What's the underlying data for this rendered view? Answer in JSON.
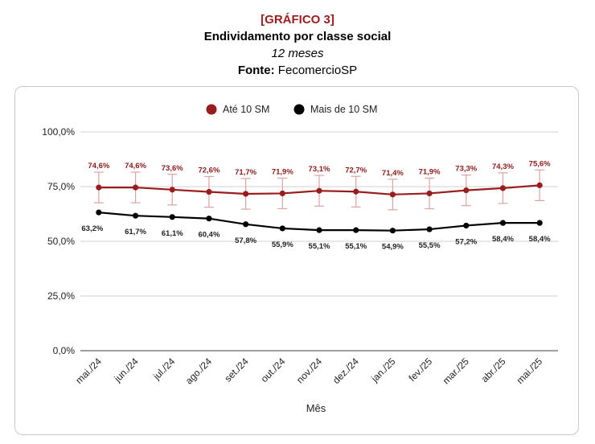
{
  "header": {
    "tag": "[GRÁFICO 3]",
    "title": "Endividamento por classe social",
    "subtitle": "12 meses",
    "source_label": "Fonte:",
    "source_value": " FecomercioSP"
  },
  "colors": {
    "series_a": "#9b1c1c",
    "series_b": "#000000",
    "grid": "#e0e0e0",
    "axis": "#666666"
  },
  "chart_data": {
    "type": "line",
    "title": "Endividamento por classe social",
    "subtitle": "12 meses",
    "xlabel": "Mês",
    "ylabel": "",
    "ylim": [
      0,
      100
    ],
    "yticks": [
      "0,0%",
      "25,0%",
      "50,0%",
      "75,0%",
      "100,0%"
    ],
    "categories": [
      "mai./24",
      "jun./24",
      "jul./24",
      "ago./24",
      "set./24",
      "out./24",
      "nov./24",
      "dez./24",
      "jan./25",
      "fev./25",
      "mar./25",
      "abr./25",
      "mai./25"
    ],
    "series": [
      {
        "name": "Até 10 SM",
        "values": [
          74.6,
          74.6,
          73.6,
          72.6,
          71.7,
          71.9,
          73.1,
          72.7,
          71.4,
          71.9,
          73.3,
          74.3,
          75.6
        ],
        "labels": [
          "74,6%",
          "74,6%",
          "73,6%",
          "72,6%",
          "71,7%",
          "71,9%",
          "73,1%",
          "72,7%",
          "71,4%",
          "71,9%",
          "73,3%",
          "74,3%",
          "75,6%"
        ],
        "error_bar": 7,
        "color": "#9b1c1c"
      },
      {
        "name": "Mais de 10 SM",
        "values": [
          63.2,
          61.7,
          61.1,
          60.4,
          57.8,
          55.9,
          55.1,
          55.1,
          54.9,
          55.5,
          57.2,
          58.4,
          58.4
        ],
        "labels": [
          "63,2%",
          "61,7%",
          "61,1%",
          "60,4%",
          "57,8%",
          "55,9%",
          "55,1%",
          "55,1%",
          "54,9%",
          "55,5%",
          "57,2%",
          "58,4%",
          "58,4%"
        ],
        "color": "#000000"
      }
    ],
    "legend": "top-center",
    "grid": true
  }
}
